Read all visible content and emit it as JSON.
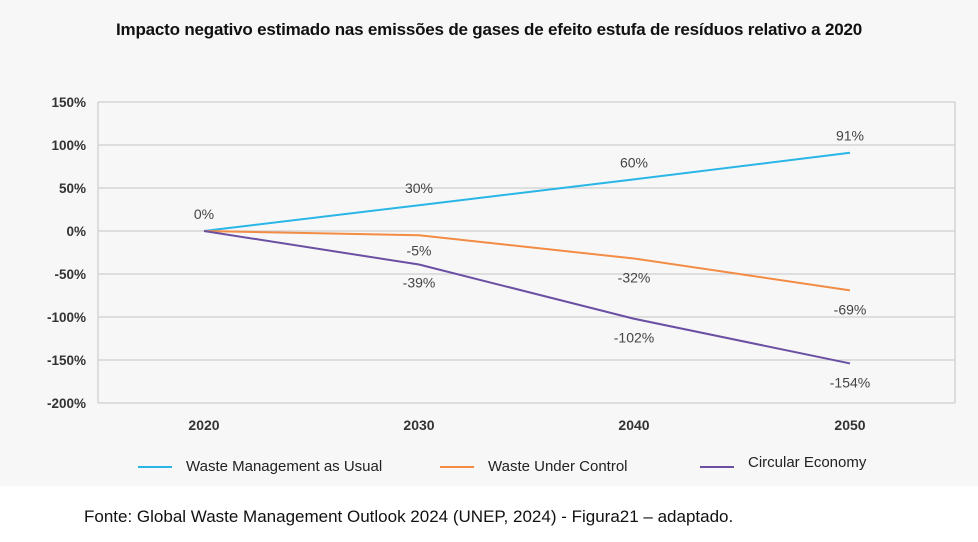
{
  "source": "Fonte: Global Waste Management Outlook 2024 (UNEP, 2024) - Figura21 – adaptado.",
  "chart_data": {
    "type": "line",
    "title": "Impacto  negativo estimado nas emissões de gases de efeito estufa de resíduos relativo a 2020",
    "xlabel": "",
    "ylabel": "",
    "categories": [
      "2020",
      "2030",
      "2040",
      "2050"
    ],
    "ylim": [
      -200,
      150
    ],
    "yticks": [
      150,
      100,
      50,
      0,
      -50,
      -100,
      -150,
      -200
    ],
    "ytick_labels": [
      "150%",
      "100%",
      "50%",
      "0%",
      "-50%",
      "-100%",
      "-150%",
      "-200%"
    ],
    "grid": true,
    "legend_position": "bottom",
    "series": [
      {
        "name": "Waste Management as Usual",
        "color": "#29b6e6",
        "values": [
          0,
          30,
          60,
          91
        ],
        "labels": [
          "0%",
          "30%",
          "60%",
          "91%"
        ]
      },
      {
        "name": "Waste Under Control",
        "color": "#f28c45",
        "values": [
          0,
          -5,
          -32,
          -69
        ],
        "labels": [
          "",
          "-5%",
          "-32%",
          "-69%"
        ]
      },
      {
        "name": "Circular Economy",
        "color": "#6a4fa3",
        "values": [
          0,
          -39,
          -102,
          -154
        ],
        "labels": [
          "",
          "-39%",
          "-102%",
          "-154%"
        ]
      }
    ]
  }
}
